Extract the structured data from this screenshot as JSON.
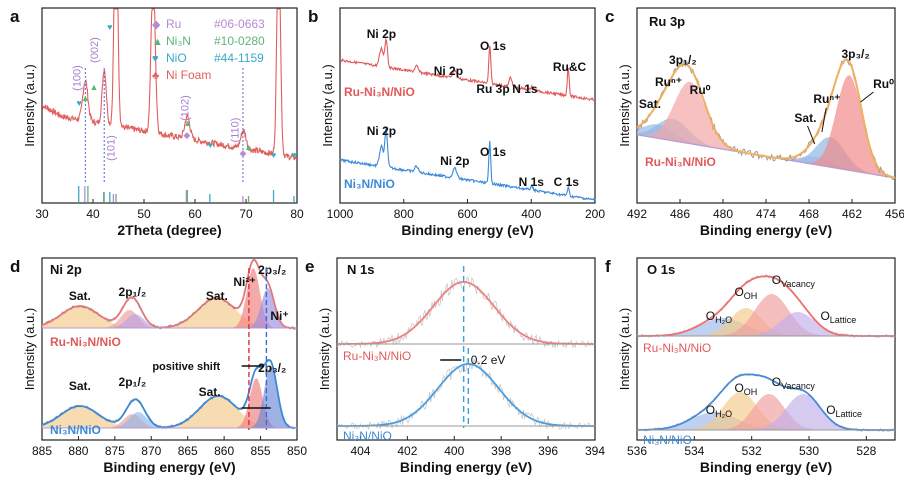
{
  "panels": [
    {
      "id": "a",
      "letter": "a",
      "xlabel": "2Theta (degree)",
      "ylabel": "Intensity (a.u.)",
      "xlim": [
        30,
        80
      ],
      "xticks": [
        "30",
        "40",
        "50",
        "60",
        "70",
        "80"
      ],
      "legend": [
        {
          "symbol": "◆",
          "name": "Ru",
          "ref": "#06-0663",
          "color": "#b58ad8"
        },
        {
          "symbol": "▲",
          "name": "Ni₃N",
          "ref": "#10-0280",
          "color": "#5fb47a"
        },
        {
          "symbol": "♥",
          "name": "NiO",
          "ref": "#44-1159",
          "color": "#38aac4"
        },
        {
          "symbol": "♣",
          "name": "Ni Foam",
          "ref": "",
          "color": "#e0605d"
        }
      ],
      "peak_labels": [
        "(100)",
        "(002)",
        "(101)",
        "(102)",
        "(110)"
      ]
    },
    {
      "id": "b",
      "letter": "b",
      "xlabel": "Binding energy (eV)",
      "ylabel": "Intensity (a.u.)",
      "xlim": [
        1000,
        200
      ],
      "xticks": [
        "1000",
        "800",
        "600",
        "400",
        "200"
      ],
      "series": [
        {
          "name": "Ru-Ni₃N/NiO",
          "color": "#e05a5a",
          "labels": [
            "Ni 2p",
            "Ni 2p",
            "O 1s",
            "Ru 3p",
            "N 1s",
            "Ru&C"
          ]
        },
        {
          "name": "Ni₃N/NiO",
          "color": "#3a8ad8",
          "labels": [
            "Ni 2p",
            "Ni 2p",
            "O 1s",
            "N 1s",
            "C 1s"
          ]
        }
      ]
    },
    {
      "id": "c",
      "letter": "c",
      "title": "Ru 3p",
      "xlabel": "Binding energy (eV)",
      "ylabel": "Intensity (a.u.)",
      "xlim": [
        492,
        456
      ],
      "xticks": [
        "492",
        "486",
        "480",
        "474",
        "468",
        "462",
        "456"
      ],
      "sample": "Ru-Ni₃N/NiO",
      "labels": {
        "sat1": "Sat.",
        "runp1": "Ruⁿ⁺",
        "ru0_1": "Ru⁰",
        "p12": "3p₁/₂",
        "sat2": "Sat.",
        "runp2": "Ruⁿ⁺",
        "p32": "3p₃/₂",
        "ru0_2": "Ru⁰"
      }
    },
    {
      "id": "d",
      "letter": "d",
      "title": "Ni 2p",
      "xlabel": "Binding energy (eV)",
      "ylabel": "Intensity (a.u.)",
      "xlim": [
        885,
        850
      ],
      "xticks": [
        "885",
        "880",
        "875",
        "870",
        "865",
        "860",
        "855",
        "850"
      ],
      "top_sample": "Ru-Ni₃N/NiO",
      "bottom_sample": "Ni₃N/NiO",
      "labels": {
        "sat": "Sat.",
        "p12": "2p₁/₂",
        "p32": "2p₃/₂",
        "ni2": "Ni²⁺",
        "niplus": "Ni⁺",
        "shift": "positive shift"
      }
    },
    {
      "id": "e",
      "letter": "e",
      "title": "N 1s",
      "xlabel": "Binding energy (eV)",
      "ylabel": "Intensity (a.u.)",
      "xlim": [
        405,
        394
      ],
      "xticks": [
        "404",
        "402",
        "400",
        "398",
        "396",
        "394"
      ],
      "top_sample": "Ru-Ni₃N/NiO",
      "bottom_sample": "Ni₃N/NiO",
      "shift_label": "0.2 eV"
    },
    {
      "id": "f",
      "letter": "f",
      "title": "O 1s",
      "xlabel": "Binding energy (eV)",
      "ylabel": "Intensity (a.u.)",
      "xlim": [
        536,
        527
      ],
      "xticks": [
        "536",
        "534",
        "532",
        "530",
        "528"
      ],
      "top_sample": "Ru-Ni₃N/NiO",
      "bottom_sample": "Ni₃N/NiO",
      "labels": {
        "oh2o": "O_H₂O",
        "ooh": "O_OH",
        "ovac": "O_Vacancy",
        "olat": "O_Lattice"
      }
    }
  ],
  "chart_data": [
    {
      "type": "line",
      "panel": "a",
      "xlabel": "2Theta (degree)",
      "ylabel": "Intensity (a.u.)",
      "xlim": [
        30,
        80
      ],
      "peaks_2theta": [
        38.5,
        42.2,
        44.5,
        51.8,
        58.5,
        69.5,
        76.4
      ],
      "reference_sticks": {
        "Ru": [
          38.4,
          42.2,
          44.0,
          58.3,
          69.4
        ],
        "Ni3N": [
          39.0,
          42.1,
          44.5,
          58.5,
          70.5
        ],
        "NiO": [
          37.2,
          43.3,
          62.9,
          75.4,
          79.4
        ]
      }
    },
    {
      "type": "line",
      "panel": "b",
      "xlabel": "Binding energy (eV)",
      "xlim": [
        1000,
        200
      ],
      "series": [
        {
          "name": "Ru-Ni₃N/NiO",
          "peaks_eV": [
            855,
            530,
            463,
            398,
            284
          ]
        },
        {
          "name": "Ni₃N/NiO",
          "peaks_eV": [
            855,
            530,
            398,
            284
          ]
        }
      ]
    },
    {
      "type": "area",
      "panel": "c",
      "xlim": [
        492,
        456
      ],
      "components_eV": {
        "Sat1": 489,
        "Ru_n+_1": 487,
        "Ru0_1": 484.6,
        "Sat2": 467,
        "Ru_n+_2": 465,
        "Ru0_2": 462.4
      }
    },
    {
      "type": "area",
      "panel": "d",
      "xlim": [
        885,
        850
      ],
      "series": [
        {
          "name": "Ru-Ni₃N/NiO",
          "components_eV": {
            "Sat_a": 879.8,
            "2p1/2": 873,
            "Sat_b": 861,
            "Ni2+": 856,
            "Ni+": 854
          }
        },
        {
          "name": "Ni₃N/NiO",
          "components_eV": {
            "Sat_a": 879.8,
            "2p1/2": 872.6,
            "Sat_b": 860.8,
            "Ni2+": 855.6,
            "Ni+": 853.6
          }
        }
      ]
    },
    {
      "type": "line",
      "panel": "e",
      "xlim": [
        405,
        394
      ],
      "series": [
        {
          "name": "Ru-Ni₃N/NiO",
          "peak_eV": 399.6
        },
        {
          "name": "Ni₃N/NiO",
          "peak_eV": 399.4
        }
      ],
      "shift_eV": 0.2
    },
    {
      "type": "area",
      "panel": "f",
      "xlim": [
        536,
        527
      ],
      "series": [
        {
          "name": "Ru-Ni₃N/NiO",
          "components_eV": {
            "O_H2O": 533.0,
            "O_OH": 532.2,
            "O_Vacancy": 531.3,
            "O_Lattice": 530.4
          }
        },
        {
          "name": "Ni₃N/NiO",
          "components_eV": {
            "O_H2O": 533.3,
            "O_OH": 532.4,
            "O_Vacancy": 531.4,
            "O_Lattice": 530.2
          }
        }
      ]
    }
  ]
}
